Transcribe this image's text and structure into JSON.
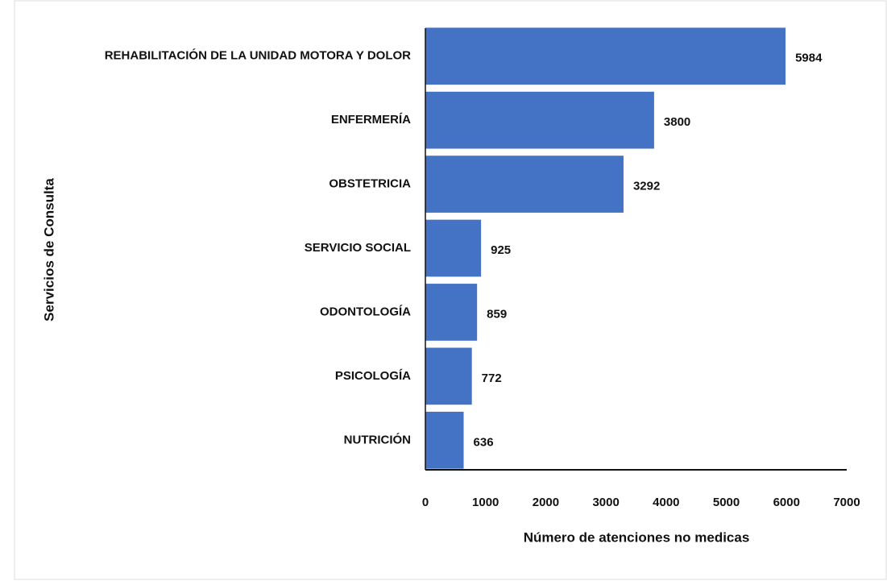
{
  "chart_data": {
    "type": "bar",
    "orientation": "horizontal",
    "categories": [
      "REHABILITACIÓN DE LA UNIDAD MOTORA Y DOLOR",
      "ENFERMERÍA",
      "OBSTETRICIA",
      "SERVICIO SOCIAL",
      "ODONTOLOGÍA",
      "PSICOLOGÍA",
      "NUTRICIÓN"
    ],
    "values": [
      5984,
      3800,
      3292,
      925,
      859,
      772,
      636
    ],
    "color": "#4472c4",
    "xlabel": "Número de atenciones no medicas",
    "ylabel": "Servicios de Consulta",
    "xlim": [
      0,
      7000
    ],
    "xticks": [
      0,
      1000,
      2000,
      3000,
      4000,
      5000,
      6000,
      7000
    ],
    "grid": false
  }
}
